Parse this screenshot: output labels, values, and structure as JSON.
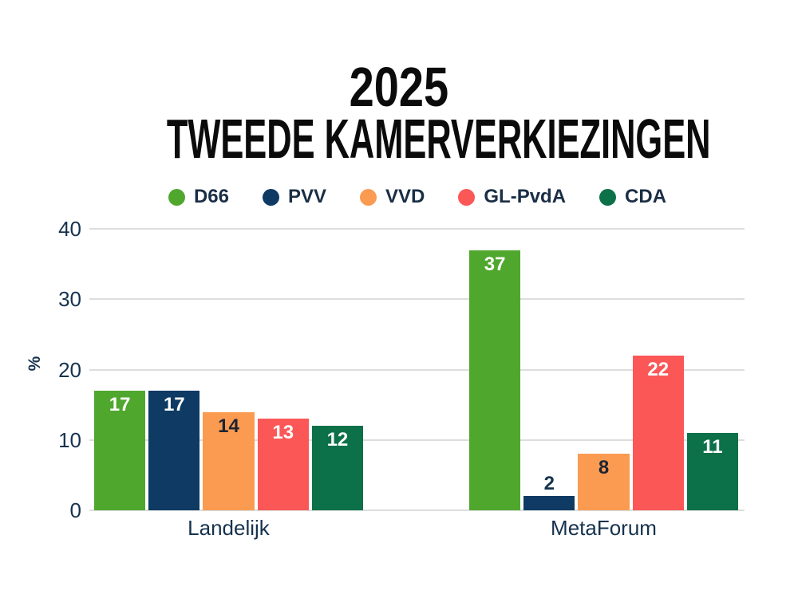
{
  "title": {
    "line1": "2025",
    "line2": "TWEEDE KAMERVERKIEZINGEN"
  },
  "y_axis": {
    "label": "%",
    "ticks": [
      40,
      30,
      20,
      10,
      0
    ]
  },
  "x_axis": {
    "categories": [
      "Landelijk",
      "MetaForum"
    ]
  },
  "chart_data": {
    "type": "bar",
    "title": "2025 TWEEDE KAMERVERKIEZINGEN",
    "categories": [
      "Landelijk",
      "MetaForum"
    ],
    "series": [
      {
        "name": "D66",
        "color": "#50a72e",
        "label_color": "#ffffff",
        "values": [
          17,
          37
        ]
      },
      {
        "name": "PVV",
        "color": "#0e3a63",
        "label_color": "#ffffff",
        "values": [
          17,
          2
        ]
      },
      {
        "name": "VVD",
        "color": "#fb9b51",
        "label_color": "#1b2433",
        "values": [
          14,
          8
        ]
      },
      {
        "name": "GL-PvdA",
        "color": "#fb5757",
        "label_color": "#ffffff",
        "values": [
          13,
          22
        ]
      },
      {
        "name": "CDA",
        "color": "#0c7148",
        "label_color": "#ffffff",
        "values": [
          12,
          11
        ]
      }
    ],
    "xlabel": "",
    "ylabel": "%",
    "ylim": [
      0,
      40
    ],
    "grid": true,
    "legend_position": "top",
    "value_labels": true
  },
  "colors": {
    "background": "#ffffff",
    "gridline": "#dcdedd",
    "axis_text": "#16324e",
    "outside_value_label": "#16324e",
    "title_text": "#0b0b0b"
  }
}
